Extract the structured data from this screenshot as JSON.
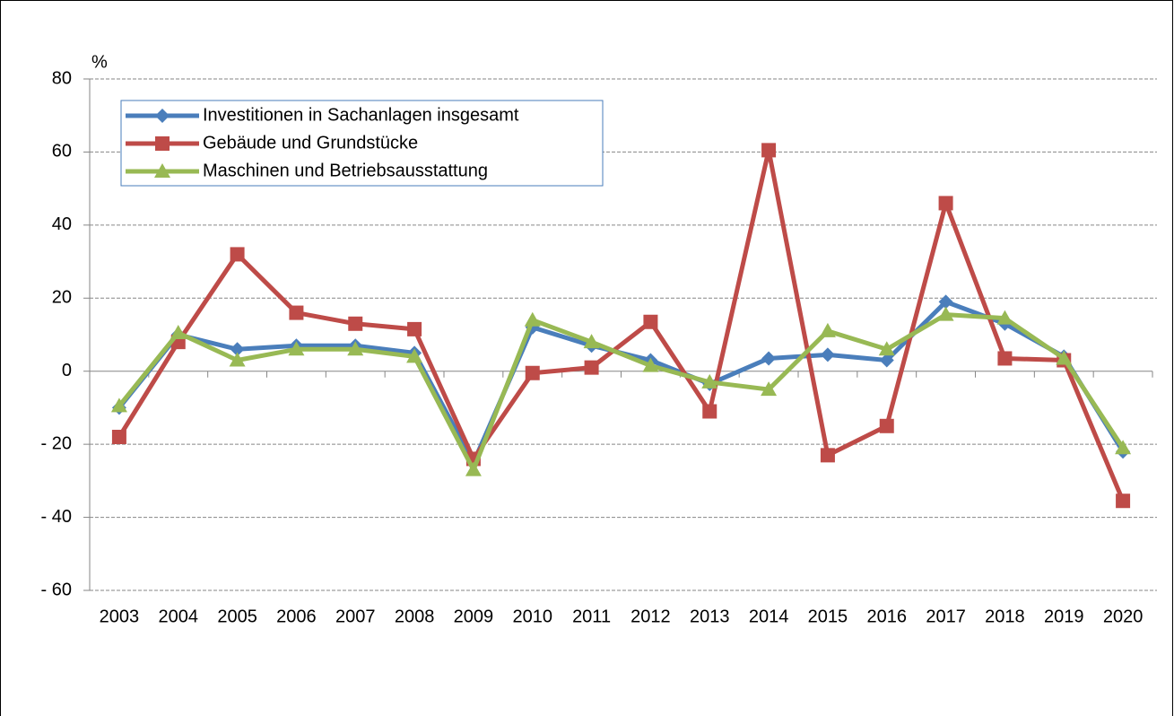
{
  "chart_data": {
    "type": "line",
    "y_unit": "%",
    "categories": [
      "2003",
      "2004",
      "2005",
      "2006",
      "2007",
      "2008",
      "2009",
      "2010",
      "2011",
      "2012",
      "2013",
      "2014",
      "2015",
      "2016",
      "2017",
      "2018",
      "2019",
      "2020"
    ],
    "series": [
      {
        "name": "Investitionen in Sachanlagen insgesamt",
        "color": "#4a7ebb",
        "marker": "diamond",
        "values": [
          -10,
          10,
          6,
          7,
          7,
          5,
          -25,
          12,
          7,
          3,
          -3.5,
          3.5,
          4.5,
          3,
          19,
          13,
          4,
          -22
        ]
      },
      {
        "name": "Gebäude und Grundstücke",
        "color": "#be4b48",
        "marker": "square",
        "values": [
          -18,
          8,
          32,
          16,
          13,
          11.5,
          -24,
          -0.5,
          1,
          13.5,
          -11,
          60.5,
          -23,
          -15,
          46,
          3.5,
          3,
          -35.5
        ]
      },
      {
        "name": "Maschinen und Betriebsausstattung",
        "color": "#98b954",
        "marker": "triangle",
        "values": [
          -9.5,
          10.5,
          3,
          6,
          6,
          4,
          -27,
          14,
          8,
          1.5,
          -3,
          -5,
          11,
          6,
          15.5,
          14.5,
          3.5,
          -21
        ]
      }
    ],
    "ylim": [
      -60,
      80
    ],
    "yticks": [
      {
        "value": -60,
        "label": "- 60"
      },
      {
        "value": -40,
        "label": "- 40"
      },
      {
        "value": -20,
        "label": "- 20"
      },
      0,
      20,
      40,
      60,
      80
    ],
    "grid": true,
    "legend": "upper left"
  }
}
